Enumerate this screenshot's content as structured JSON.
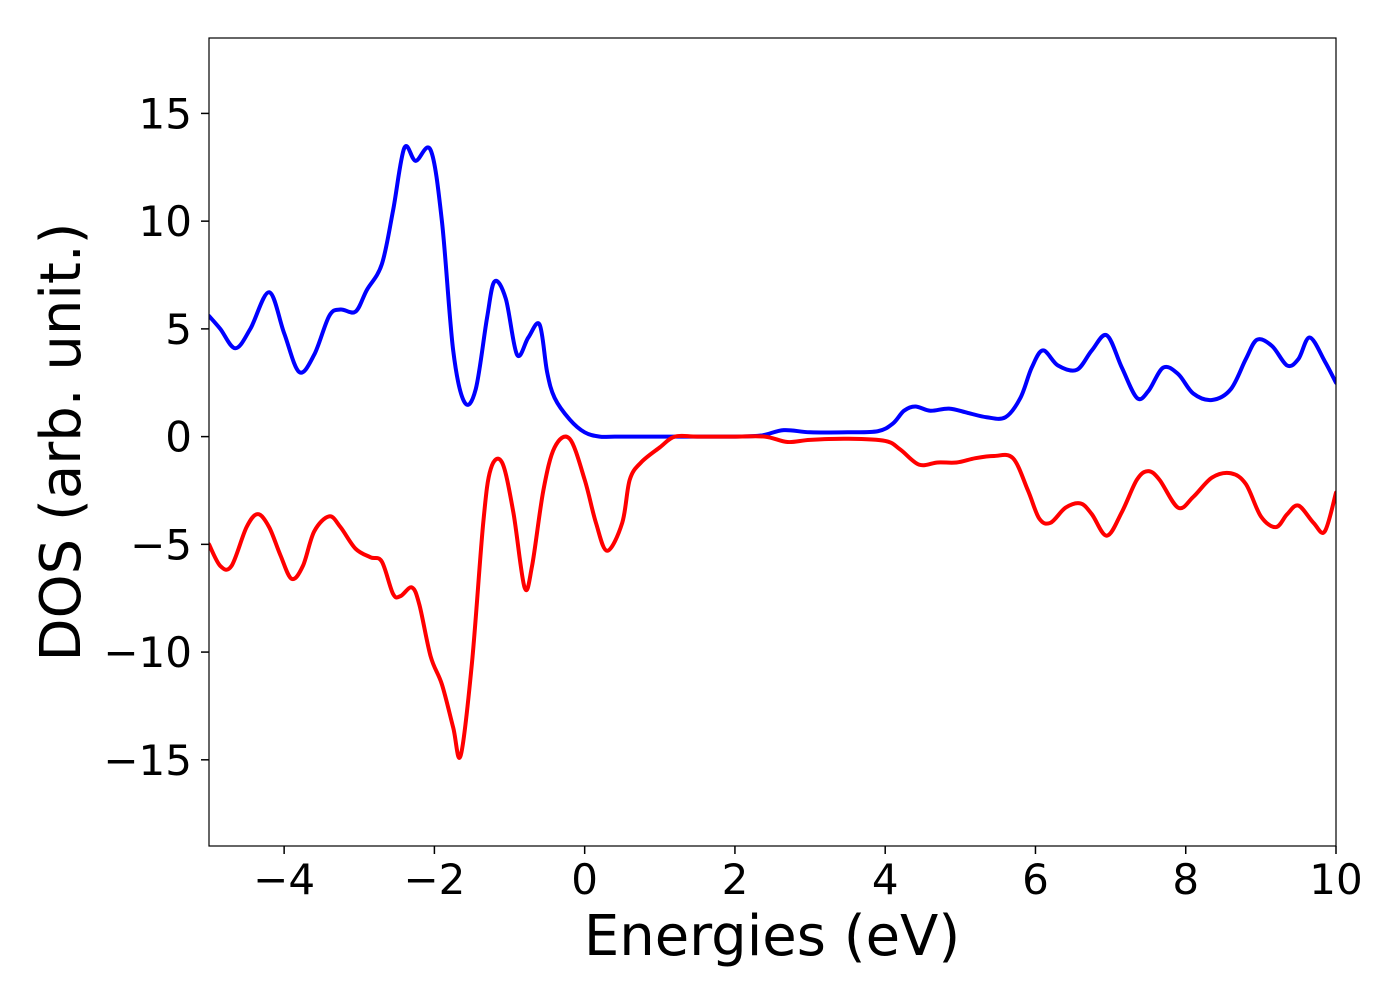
{
  "chart_data": {
    "type": "line",
    "title": "",
    "xlabel": "Energies (eV)",
    "ylabel": "DOS (arb. unit.)",
    "xlim": [
      -5,
      10
    ],
    "ylim": [
      -19,
      18.5
    ],
    "xticks": [
      -4,
      -2,
      0,
      2,
      4,
      6,
      8,
      10
    ],
    "xtick_labels": [
      "−4",
      "−2",
      "0",
      "2",
      "4",
      "6",
      "8",
      "10"
    ],
    "yticks": [
      15,
      10,
      5,
      0,
      -5,
      -10,
      -15
    ],
    "ytick_labels": [
      "15",
      "10",
      "5",
      "0",
      "−5",
      "−10",
      "−15"
    ],
    "grid": false,
    "legend": "none",
    "series": [
      {
        "color": "#0000ff",
        "x": [
          -5.0,
          -4.85,
          -4.65,
          -4.45,
          -4.2,
          -4.0,
          -3.8,
          -3.6,
          -3.4,
          -3.25,
          -3.05,
          -2.9,
          -2.7,
          -2.55,
          -2.4,
          -2.25,
          -2.05,
          -1.9,
          -1.75,
          -1.6,
          -1.45,
          -1.3,
          -1.2,
          -1.05,
          -0.9,
          -0.75,
          -0.6,
          -0.5,
          -0.4,
          -0.2,
          0.0,
          0.2,
          0.4,
          1.0,
          1.5,
          2.0,
          2.35,
          2.65,
          3.0,
          3.5,
          3.9,
          4.1,
          4.25,
          4.4,
          4.6,
          4.85,
          5.1,
          5.35,
          5.6,
          5.8,
          5.95,
          6.1,
          6.3,
          6.55,
          6.75,
          6.95,
          7.15,
          7.35,
          7.5,
          7.7,
          7.9,
          8.1,
          8.35,
          8.6,
          8.8,
          8.95,
          9.15,
          9.35,
          9.5,
          9.65,
          9.85,
          10.0
        ],
        "y": [
          5.6,
          5.0,
          4.1,
          5.0,
          6.7,
          4.8,
          3.0,
          3.8,
          5.6,
          5.9,
          5.8,
          6.8,
          8.0,
          10.5,
          13.4,
          12.8,
          13.3,
          10.0,
          4.0,
          1.6,
          2.2,
          5.5,
          7.2,
          6.4,
          3.8,
          4.6,
          5.2,
          3.0,
          1.8,
          0.8,
          0.2,
          0.0,
          0.0,
          0.0,
          0.0,
          0.0,
          0.05,
          0.3,
          0.2,
          0.2,
          0.25,
          0.6,
          1.2,
          1.4,
          1.2,
          1.3,
          1.1,
          0.9,
          0.9,
          1.8,
          3.2,
          4.0,
          3.3,
          3.1,
          4.0,
          4.7,
          3.2,
          1.8,
          2.1,
          3.2,
          2.9,
          2.0,
          1.7,
          2.2,
          3.6,
          4.5,
          4.2,
          3.3,
          3.6,
          4.6,
          3.5,
          2.5
        ]
      },
      {
        "color": "#ff0000",
        "x": [
          -5.0,
          -4.85,
          -4.7,
          -4.5,
          -4.35,
          -4.2,
          -4.05,
          -3.9,
          -3.75,
          -3.6,
          -3.4,
          -3.25,
          -3.05,
          -2.85,
          -2.7,
          -2.55,
          -2.45,
          -2.3,
          -2.2,
          -2.05,
          -1.9,
          -1.75,
          -1.65,
          -1.5,
          -1.35,
          -1.25,
          -1.1,
          -0.95,
          -0.8,
          -0.7,
          -0.55,
          -0.4,
          -0.2,
          0.0,
          0.15,
          0.3,
          0.5,
          0.6,
          0.75,
          1.0,
          1.2,
          1.5,
          2.0,
          2.4,
          2.7,
          3.0,
          3.5,
          4.0,
          4.2,
          4.45,
          4.7,
          4.95,
          5.2,
          5.45,
          5.7,
          5.9,
          6.05,
          6.2,
          6.4,
          6.6,
          6.75,
          6.95,
          7.15,
          7.35,
          7.5,
          7.65,
          7.9,
          8.1,
          8.35,
          8.6,
          8.8,
          9.0,
          9.2,
          9.35,
          9.5,
          9.7,
          9.85,
          10.0
        ],
        "y": [
          -5.0,
          -6.0,
          -6.0,
          -4.2,
          -3.6,
          -4.2,
          -5.5,
          -6.6,
          -6.0,
          -4.4,
          -3.7,
          -4.2,
          -5.2,
          -5.6,
          -5.8,
          -7.3,
          -7.4,
          -7.0,
          -7.8,
          -10.2,
          -11.5,
          -13.5,
          -14.8,
          -10.5,
          -4.0,
          -1.5,
          -1.2,
          -3.5,
          -7.0,
          -6.0,
          -2.5,
          -0.5,
          -0.1,
          -2.0,
          -4.0,
          -5.3,
          -4.0,
          -2.0,
          -1.2,
          -0.5,
          0.0,
          0.0,
          0.0,
          0.0,
          -0.25,
          -0.15,
          -0.1,
          -0.2,
          -0.6,
          -1.3,
          -1.2,
          -1.2,
          -1.0,
          -0.9,
          -1.0,
          -2.5,
          -3.8,
          -4.0,
          -3.3,
          -3.1,
          -3.6,
          -4.6,
          -3.5,
          -2.0,
          -1.6,
          -2.0,
          -3.3,
          -2.8,
          -1.9,
          -1.7,
          -2.2,
          -3.7,
          -4.2,
          -3.6,
          -3.2,
          -4.0,
          -4.4,
          -2.6
        ]
      }
    ]
  }
}
